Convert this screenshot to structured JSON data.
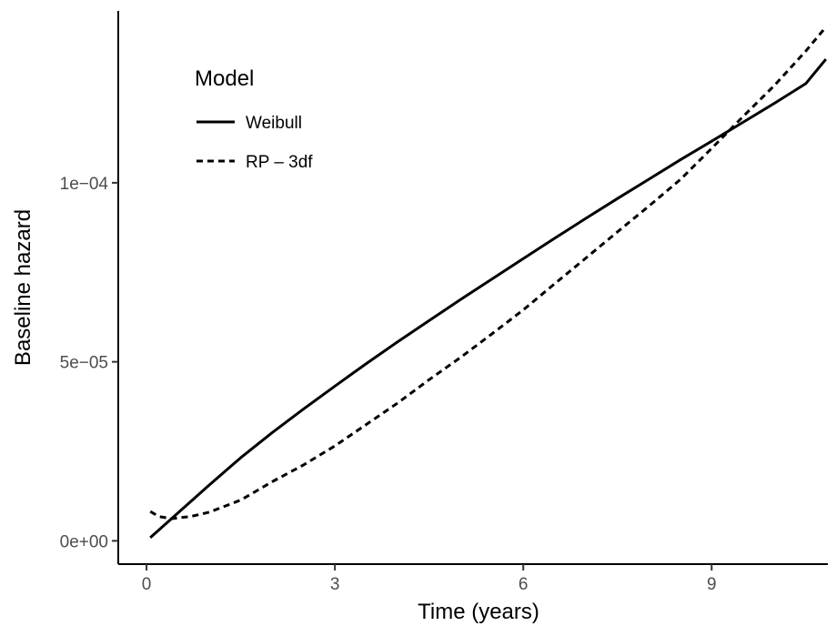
{
  "chart_data": {
    "type": "line",
    "xlabel": "Time (years)",
    "ylabel": "Baseline hazard",
    "xlim": [
      -0.45,
      10.85
    ],
    "ylim": [
      -6.5e-06,
      0.000148
    ],
    "x_ticks": [
      {
        "value": 0,
        "label": "0"
      },
      {
        "value": 3,
        "label": "3"
      },
      {
        "value": 6,
        "label": "6"
      },
      {
        "value": 9,
        "label": "9"
      }
    ],
    "y_ticks": [
      {
        "value": 0,
        "label": "0e+00"
      },
      {
        "value": 5e-05,
        "label": "5e−05"
      },
      {
        "value": 0.0001,
        "label": "1e−04"
      }
    ],
    "grid": false,
    "legend": {
      "title": "Model",
      "placement": "top-left"
    },
    "series": [
      {
        "name": "Weibull",
        "line_style": "solid",
        "color": "#000000",
        "points": [
          [
            0.06,
            9e-07
          ],
          [
            0.5,
            7.8e-06
          ],
          [
            1,
            1.56e-05
          ],
          [
            1.5,
            2.32e-05
          ],
          [
            2,
            3.02e-05
          ],
          [
            2.5,
            3.68e-05
          ],
          [
            3,
            4.32e-05
          ],
          [
            3.5,
            4.95e-05
          ],
          [
            4,
            5.56e-05
          ],
          [
            4.5,
            6.15e-05
          ],
          [
            5,
            6.74e-05
          ],
          [
            5.5,
            7.31e-05
          ],
          [
            6,
            7.88e-05
          ],
          [
            6.5,
            8.45e-05
          ],
          [
            7,
            9.01e-05
          ],
          [
            7.5,
            9.56e-05
          ],
          [
            8,
            0.000101
          ],
          [
            8.5,
            0.0001064
          ],
          [
            9,
            0.0001116
          ],
          [
            9.5,
            0.0001169
          ],
          [
            10,
            0.0001222
          ],
          [
            10.5,
            0.0001277
          ],
          [
            10.82,
            0.0001345
          ]
        ]
      },
      {
        "name": "RP – 3df",
        "line_style": "dashed",
        "color": "#000000",
        "points": [
          [
            0.06,
            8.2e-06
          ],
          [
            0.2,
            6.8e-06
          ],
          [
            0.4,
            6.2e-06
          ],
          [
            0.7,
            6.8e-06
          ],
          [
            1,
            8e-06
          ],
          [
            1.5,
            1.14e-05
          ],
          [
            2,
            1.65e-05
          ],
          [
            2.5,
            2.12e-05
          ],
          [
            3,
            2.65e-05
          ],
          [
            3.5,
            3.25e-05
          ],
          [
            4,
            3.85e-05
          ],
          [
            4.5,
            4.5e-05
          ],
          [
            5,
            5.12e-05
          ],
          [
            5.5,
            5.78e-05
          ],
          [
            6,
            6.45e-05
          ],
          [
            6.5,
            7.18e-05
          ],
          [
            7,
            7.9e-05
          ],
          [
            7.5,
            8.63e-05
          ],
          [
            8,
            9.35e-05
          ],
          [
            8.5,
            0.0001009
          ],
          [
            9,
            0.0001096
          ],
          [
            9.5,
            0.0001185
          ],
          [
            10,
            0.0001272
          ],
          [
            10.5,
            0.0001368
          ],
          [
            10.82,
            0.0001435
          ]
        ]
      }
    ]
  }
}
